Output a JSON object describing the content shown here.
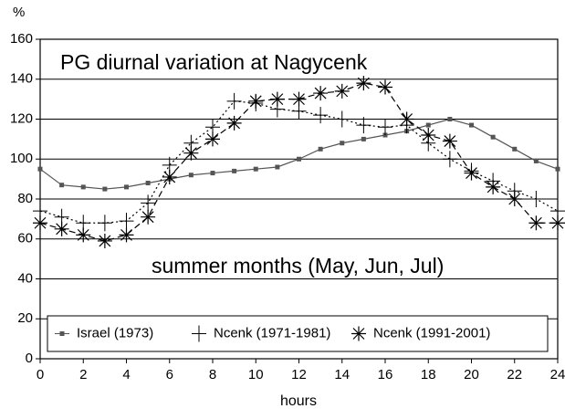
{
  "chart_data": {
    "type": "line",
    "title": "PG diurnal variation at Nagycenk",
    "annotation": "summer months (May, Jun, Jul)",
    "x_label": "hours",
    "y_label": "%",
    "x": [
      0,
      1,
      2,
      3,
      4,
      5,
      6,
      7,
      8,
      9,
      10,
      11,
      12,
      13,
      14,
      15,
      16,
      17,
      18,
      19,
      20,
      21,
      22,
      23,
      24
    ],
    "series": [
      {
        "name": "Israel (1973)",
        "color": "#555555",
        "dash": "solid",
        "marker": "square",
        "values": [
          95,
          87,
          86,
          85,
          86,
          88,
          90,
          92,
          93,
          94,
          95,
          96,
          100,
          105,
          108,
          110,
          112,
          114,
          117,
          120,
          117,
          111,
          105,
          99,
          95
        ]
      },
      {
        "name": "Ncenk (1971-1981)",
        "color": "#000000",
        "dash": "dotted",
        "marker": "plus",
        "values": [
          74,
          71,
          68,
          68,
          69,
          78,
          97,
          108,
          116,
          129,
          128,
          125,
          124,
          122,
          120,
          117,
          116,
          117,
          108,
          100,
          94,
          89,
          84,
          80,
          74
        ]
      },
      {
        "name": "Ncenk (1991-2001)",
        "color": "#000000",
        "dash": "dashed",
        "marker": "asterisk",
        "values": [
          68,
          65,
          62,
          59,
          62,
          71,
          91,
          103,
          110,
          118,
          129,
          130,
          130,
          133,
          134,
          138,
          136,
          120,
          112,
          109,
          93,
          86,
          80,
          68,
          68
        ]
      }
    ],
    "xlim": [
      0,
      24
    ],
    "xticks": [
      0,
      2,
      4,
      6,
      8,
      10,
      12,
      14,
      16,
      18,
      20,
      22,
      24
    ],
    "ylim": [
      0,
      160
    ],
    "yticks": [
      0,
      20,
      40,
      60,
      80,
      100,
      120,
      140,
      160
    ],
    "grid": true,
    "legend": "bottom"
  }
}
